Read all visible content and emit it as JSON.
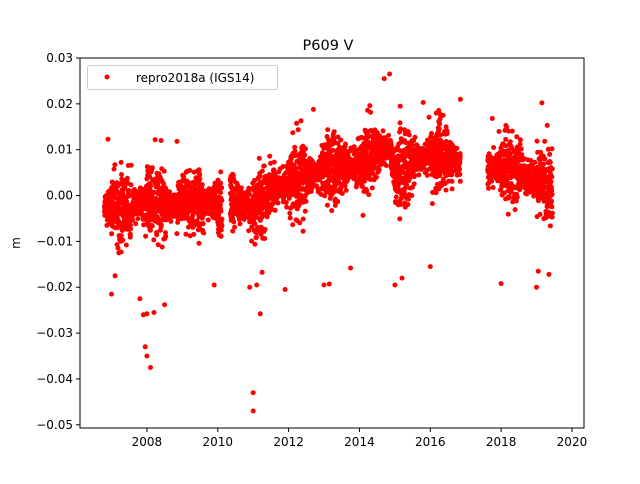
{
  "chart_data": {
    "type": "scatter",
    "title": "P609 V",
    "xlabel": "",
    "ylabel": "m",
    "xlim": [
      2006.11,
      2020.34
    ],
    "ylim": [
      -0.0507,
      0.03
    ],
    "xticks": [
      2008,
      2010,
      2012,
      2014,
      2016,
      2018,
      2020
    ],
    "xtick_labels": [
      "2008",
      "2010",
      "2012",
      "2014",
      "2016",
      "2018",
      "2020"
    ],
    "yticks": [
      0.03,
      0.02,
      0.01,
      0.0,
      -0.01,
      -0.02,
      -0.03,
      -0.04,
      -0.05
    ],
    "ytick_labels": [
      "0.03",
      "0.02",
      "0.01",
      "0.00",
      "−0.01",
      "−0.02",
      "−0.03",
      "−0.04",
      "−0.05"
    ],
    "grid": false,
    "legend": {
      "placement": "top-left",
      "entries": [
        "repro2018a (IGS14)"
      ]
    },
    "series": [
      {
        "name": "repro2018a (IGS14)",
        "color": "#ff0000",
        "marker": "circle",
        "segments": [
          {
            "start": 2006.8,
            "end": 2010.12,
            "trend": [
              [
                2006.8,
                -0.002
              ],
              [
                2007.5,
                -0.003
              ],
              [
                2008.0,
                -0.001
              ],
              [
                2008.5,
                -0.002
              ],
              [
                2009.0,
                -0.002
              ],
              [
                2009.5,
                -0.001
              ],
              [
                2010.1,
                -0.002
              ]
            ],
            "spread": 0.0035
          },
          {
            "start": 2010.35,
            "end": 2016.85,
            "trend": [
              [
                2010.35,
                -0.001
              ],
              [
                2011.0,
                -0.003
              ],
              [
                2011.5,
                0.001
              ],
              [
                2012.0,
                0.003
              ],
              [
                2012.5,
                0.004
              ],
              [
                2013.0,
                0.005
              ],
              [
                2013.5,
                0.006
              ],
              [
                2014.0,
                0.007
              ],
              [
                2014.5,
                0.009
              ],
              [
                2014.85,
                0.011
              ],
              [
                2015.0,
                0.004
              ],
              [
                2015.5,
                0.007
              ],
              [
                2016.0,
                0.009
              ],
              [
                2016.5,
                0.008
              ],
              [
                2016.85,
                0.007
              ]
            ],
            "spread": 0.0035
          },
          {
            "start": 2017.62,
            "end": 2019.45,
            "trend": [
              [
                2017.62,
                0.006
              ],
              [
                2018.0,
                0.006
              ],
              [
                2018.5,
                0.005
              ],
              [
                2019.0,
                0.003
              ],
              [
                2019.45,
                0.002
              ]
            ],
            "spread": 0.0035
          }
        ],
        "outliers": [
          [
            2006.9,
            0.0123
          ],
          [
            2007.0,
            -0.0215
          ],
          [
            2007.1,
            -0.0175
          ],
          [
            2007.8,
            -0.0225
          ],
          [
            2007.9,
            -0.026
          ],
          [
            2008.0,
            -0.0258
          ],
          [
            2007.95,
            -0.033
          ],
          [
            2008.0,
            -0.035
          ],
          [
            2008.1,
            -0.0375
          ],
          [
            2008.2,
            -0.0255
          ],
          [
            2008.5,
            -0.0238
          ],
          [
            2008.4,
            0.012
          ],
          [
            2008.85,
            0.0118
          ],
          [
            2009.9,
            -0.0195
          ],
          [
            2011.0,
            -0.043
          ],
          [
            2011.0,
            -0.047
          ],
          [
            2011.2,
            -0.0258
          ],
          [
            2010.9,
            -0.02
          ],
          [
            2011.1,
            -0.0195
          ],
          [
            2011.9,
            -0.0205
          ],
          [
            2013.0,
            -0.0195
          ],
          [
            2013.15,
            -0.0193
          ],
          [
            2013.75,
            -0.0158
          ],
          [
            2014.7,
            0.0255
          ],
          [
            2014.85,
            0.0265
          ],
          [
            2015.0,
            -0.0195
          ],
          [
            2015.2,
            -0.018
          ],
          [
            2016.0,
            -0.0155
          ],
          [
            2016.85,
            0.021
          ],
          [
            2018.0,
            -0.0192
          ],
          [
            2019.05,
            -0.0165
          ],
          [
            2019.15,
            0.0202
          ],
          [
            2019.35,
            -0.0172
          ],
          [
            2019.0,
            -0.02
          ],
          [
            2012.35,
            0.0163
          ],
          [
            2012.7,
            0.0188
          ],
          [
            2015.8,
            0.0203
          ],
          [
            2017.75,
            0.0168
          ],
          [
            2019.3,
            0.0153
          ]
        ]
      }
    ]
  }
}
